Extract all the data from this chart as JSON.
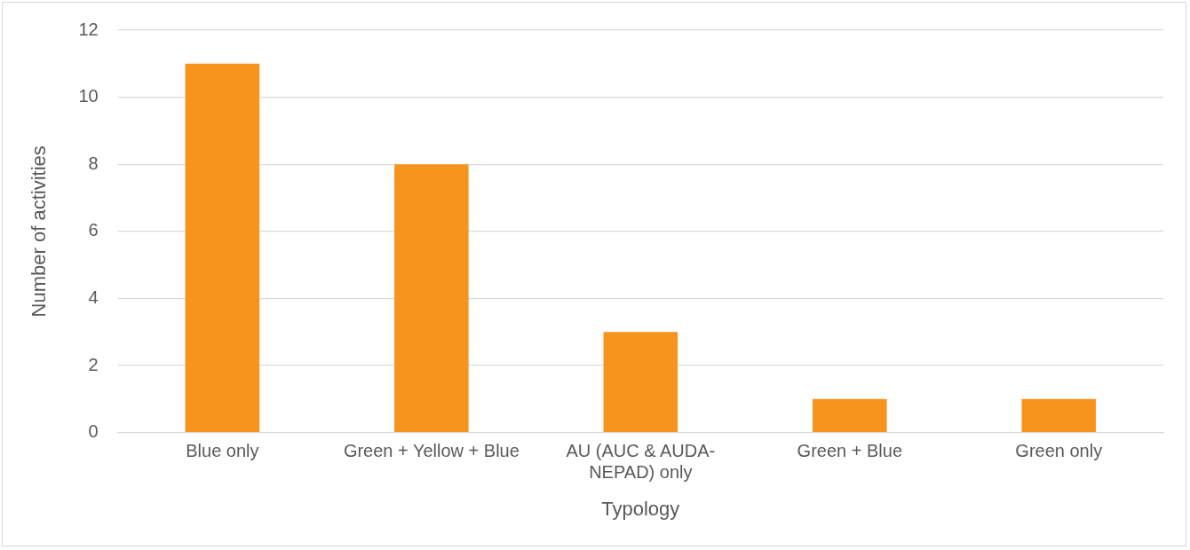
{
  "chart_data": {
    "type": "bar",
    "xlabel": "Typology",
    "ylabel": "Number of activities",
    "categories": [
      "Blue only",
      "Green + Yellow + Blue",
      "AU (AUC & AUDA-NEPAD) only",
      "Green + Blue",
      "Green only"
    ],
    "values": [
      11,
      8,
      3,
      1,
      1
    ],
    "color": "#f7941d",
    "ylim": [
      0,
      12
    ],
    "yticks": [
      0,
      2,
      4,
      6,
      8,
      10,
      12
    ],
    "grid": "y",
    "legend": false
  }
}
